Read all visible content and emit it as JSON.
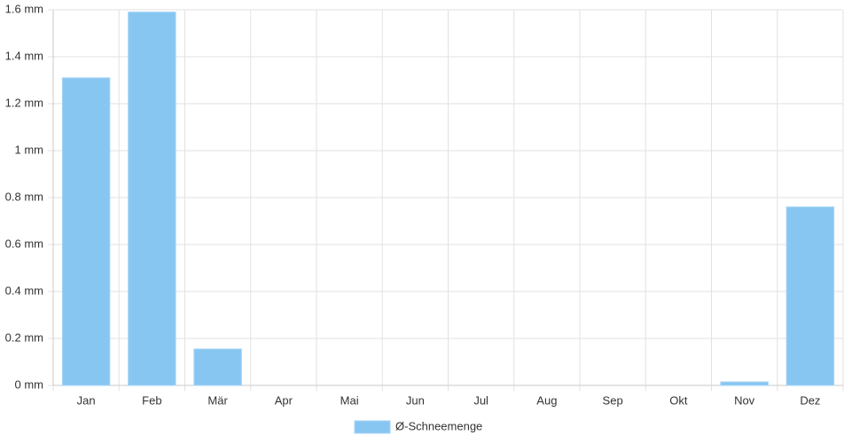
{
  "chart_data": {
    "type": "bar",
    "categories": [
      "Jan",
      "Feb",
      "Mär",
      "Apr",
      "Mai",
      "Jun",
      "Jul",
      "Aug",
      "Sep",
      "Okt",
      "Nov",
      "Dez"
    ],
    "series": [
      {
        "name": "Ø-Schneemenge",
        "color": "#88c6f2",
        "values": [
          1.31,
          1.59,
          0.155,
          0,
          0,
          0,
          0,
          0,
          0,
          0,
          0.015,
          0.76
        ]
      }
    ],
    "ylim": [
      0,
      1.6
    ],
    "yticks": [
      {
        "value": 0,
        "label": "0 mm"
      },
      {
        "value": 0.2,
        "label": "0.2 mm"
      },
      {
        "value": 0.4,
        "label": "0.4 mm"
      },
      {
        "value": 0.6,
        "label": "0.6 mm"
      },
      {
        "value": 0.8,
        "label": "0.8 mm"
      },
      {
        "value": 1,
        "label": "1 mm"
      },
      {
        "value": 1.2,
        "label": "1.2 mm"
      },
      {
        "value": 1.4,
        "label": "1.4 mm"
      },
      {
        "value": 1.6,
        "label": "1.6 mm"
      }
    ],
    "grid": true,
    "legend": "bottom"
  }
}
